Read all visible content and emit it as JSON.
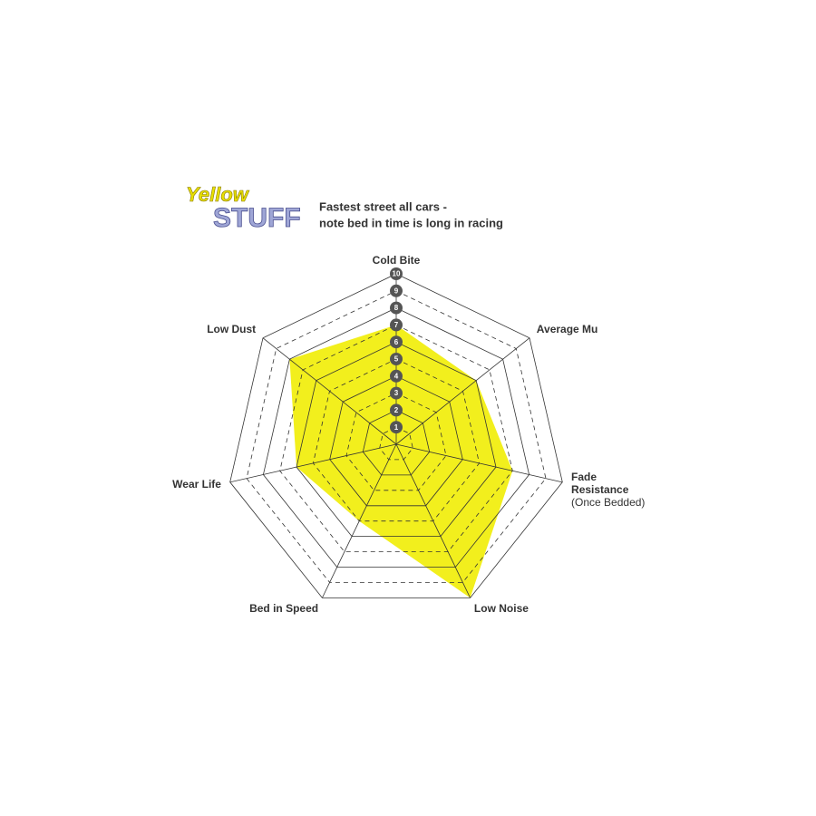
{
  "chart_data": {
    "type": "radar",
    "logo": [
      "Yellow",
      "STUFF"
    ],
    "title": [
      "Fastest street all cars -",
      "note bed in time is long in racing"
    ],
    "categories": [
      "Cold Bite",
      "Average Mu",
      "Fade Resistance",
      "Low Noise",
      "Bed in Speed",
      "Wear Life",
      "Low Dust"
    ],
    "category_note": "(Once Bedded)",
    "values": [
      7,
      6,
      7,
      10,
      5,
      6,
      8
    ],
    "color": "#f2ef1d",
    "rlim": [
      0,
      10
    ],
    "rticks": [
      1,
      2,
      3,
      4,
      5,
      6,
      7,
      8,
      9,
      10
    ]
  }
}
